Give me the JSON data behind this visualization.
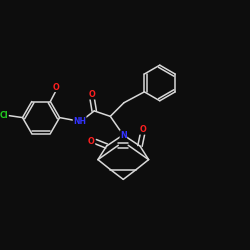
{
  "bg_color": "#0d0d0d",
  "bond_color": "#d8d8d8",
  "atom_colors": {
    "O": "#ff2020",
    "N": "#3333ff",
    "Cl": "#22cc22",
    "C": "#d8d8d8"
  },
  "bg_color2": "#0d0d0d"
}
